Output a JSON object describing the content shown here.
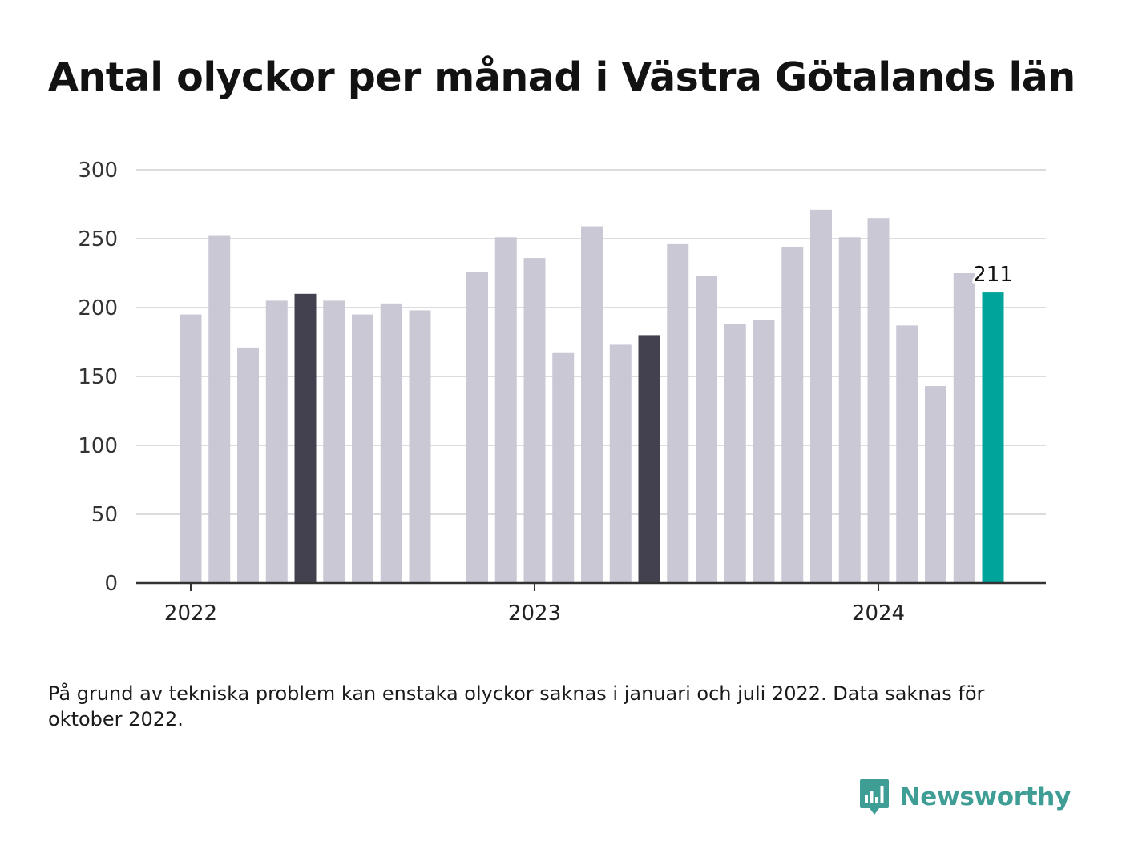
{
  "chart_data": {
    "type": "bar",
    "title": "Antal olyckor per månad i Västra Götalands län",
    "x": [
      "2022-01",
      "2022-02",
      "2022-03",
      "2022-04",
      "2022-05",
      "2022-06",
      "2022-07",
      "2022-08",
      "2022-09",
      "2022-10",
      "2022-11",
      "2022-12",
      "2023-01",
      "2023-02",
      "2023-03",
      "2023-04",
      "2023-05",
      "2023-06",
      "2023-07",
      "2023-08",
      "2023-09",
      "2023-10",
      "2023-11",
      "2023-12",
      "2024-01",
      "2024-02",
      "2024-03",
      "2024-04",
      "2024-05"
    ],
    "values": [
      195,
      252,
      171,
      205,
      210,
      205,
      195,
      203,
      198,
      null,
      226,
      251,
      236,
      167,
      259,
      173,
      180,
      246,
      223,
      188,
      191,
      244,
      271,
      251,
      265,
      187,
      143,
      225,
      211
    ],
    "highlight": {
      "2022-05": "#43414f",
      "2023-05": "#43414f",
      "2024-05": "#00a49a"
    },
    "base_color": "#c9c8d4",
    "annotation": {
      "x": "2024-05",
      "label": "211"
    },
    "x_tick_labels": [
      {
        "x": "2022-01",
        "label": "2022"
      },
      {
        "x": "2023-01",
        "label": "2023"
      },
      {
        "x": "2024-01",
        "label": "2024"
      }
    ],
    "y_ticks": [
      0,
      50,
      100,
      150,
      200,
      250,
      300
    ],
    "ylim": [
      0,
      300
    ],
    "xlabel": "",
    "ylabel": "",
    "grid": true
  },
  "note": "På grund av tekniska problem kan enstaka olyckor saknas i januari och juli 2022. Data saknas för oktober 2022.",
  "brand": {
    "name": "Newsworthy",
    "icon": "bar-chart-speech-bubble-icon",
    "color": "#3e9d94"
  }
}
